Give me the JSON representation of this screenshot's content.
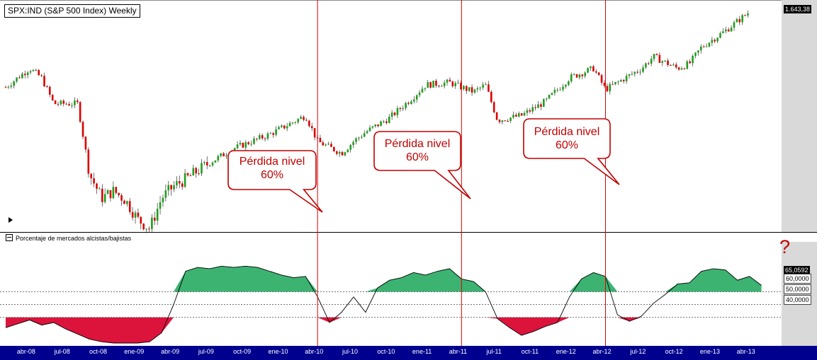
{
  "chart_title": "SPX:IND (S&P 500 Index) Weekly",
  "indicator_title": "Porcentaje de mercados alcistas/bajistas",
  "last_price_label": "1.643,38",
  "indicator_last_value_label": "65,0592",
  "question_mark": "?",
  "callouts": [
    {
      "line1": "Pérdida nivel",
      "line2": "60%"
    },
    {
      "line1": "Pérdida nivel",
      "line2": "60%"
    },
    {
      "line1": "Pérdida nivel",
      "line2": "60%"
    }
  ],
  "colors": {
    "up_candle": "#1e9e1e",
    "down_candle": "#dd0000",
    "bull_fill": "#3cb371",
    "bear_fill": "#dc143c",
    "marker_line": "#dd0000",
    "axis_bar": "#00008f",
    "right_margin": "#d9d9d9"
  },
  "chart_data": [
    {
      "type": "candlestick",
      "title": "SPX:IND (S&P 500 Index) Weekly",
      "x_ticks": [
        "abr-08",
        "jul-08",
        "oct-08",
        "ene-09",
        "abr-09",
        "jul-09",
        "oct-09",
        "ene-10",
        "abr-10",
        "jul-10",
        "oct-10",
        "ene-11",
        "abr-11",
        "jul-11",
        "oct-11",
        "ene-12",
        "abr-12",
        "jul-12",
        "oct-12",
        "ene-13",
        "abr-13"
      ],
      "x_range": [
        "2008-03",
        "2013-06"
      ],
      "series": [
        {
          "name": "SPX:IND",
          "points": [
            [
              "2008-03",
              1320
            ],
            [
              "2008-05",
              1400
            ],
            [
              "2008-06",
              1360
            ],
            [
              "2008-07",
              1250
            ],
            [
              "2008-09",
              1250
            ],
            [
              "2008-10",
              950
            ],
            [
              "2008-11",
              850
            ],
            [
              "2008-12",
              880
            ],
            [
              "2009-01",
              840
            ],
            [
              "2009-02",
              760
            ],
            [
              "2009-03",
              720
            ],
            [
              "2009-04",
              850
            ],
            [
              "2009-05",
              900
            ],
            [
              "2009-06",
              930
            ],
            [
              "2009-08",
              1000
            ],
            [
              "2009-10",
              1060
            ],
            [
              "2010-01",
              1120
            ],
            [
              "2010-04",
              1200
            ],
            [
              "2010-05",
              1090
            ],
            [
              "2010-07",
              1040
            ],
            [
              "2010-08",
              1090
            ],
            [
              "2010-09",
              1130
            ],
            [
              "2010-11",
              1190
            ],
            [
              "2011-01",
              1280
            ],
            [
              "2011-02",
              1330
            ],
            [
              "2011-04",
              1340
            ],
            [
              "2011-06",
              1300
            ],
            [
              "2011-07",
              1330
            ],
            [
              "2011-08",
              1180
            ],
            [
              "2011-10",
              1200
            ],
            [
              "2011-11",
              1230
            ],
            [
              "2011-12",
              1260
            ],
            [
              "2012-02",
              1360
            ],
            [
              "2012-04",
              1400
            ],
            [
              "2012-05",
              1310
            ],
            [
              "2012-06",
              1340
            ],
            [
              "2012-08",
              1400
            ],
            [
              "2012-09",
              1450
            ],
            [
              "2012-11",
              1400
            ],
            [
              "2012-12",
              1420
            ],
            [
              "2013-01",
              1490
            ],
            [
              "2013-03",
              1560
            ],
            [
              "2013-05",
              1640
            ]
          ]
        }
      ],
      "last_value": 1643.38,
      "vertical_markers": [
        "2010-05",
        "2011-05",
        "2012-05"
      ]
    },
    {
      "type": "area",
      "title": "Porcentaje de mercados alcistas/bajistas",
      "ylim": [
        20,
        100
      ],
      "reference_lines": [
        60,
        50,
        40
      ],
      "reference_labels": [
        "60,0000",
        "50,0000",
        "40,0000"
      ],
      "fill_above": 60,
      "fill_below": 40,
      "series": [
        {
          "name": "Porcentaje de mercados alcistas/bajistas",
          "points": [
            [
              "2008-03",
              32
            ],
            [
              "2008-04",
              35
            ],
            [
              "2008-05",
              38
            ],
            [
              "2008-06",
              34
            ],
            [
              "2008-07",
              36
            ],
            [
              "2008-08",
              31
            ],
            [
              "2008-09",
              27
            ],
            [
              "2008-10",
              23
            ],
            [
              "2008-11",
              21
            ],
            [
              "2008-12",
              20
            ],
            [
              "2009-01",
              20
            ],
            [
              "2009-02",
              20
            ],
            [
              "2009-03",
              21
            ],
            [
              "2009-04",
              28
            ],
            [
              "2009-05",
              50
            ],
            [
              "2009-06",
              76
            ],
            [
              "2009-07",
              79
            ],
            [
              "2009-08",
              78
            ],
            [
              "2009-09",
              80
            ],
            [
              "2009-10",
              79
            ],
            [
              "2009-11",
              80
            ],
            [
              "2009-12",
              79
            ],
            [
              "2010-01",
              76
            ],
            [
              "2010-02",
              73
            ],
            [
              "2010-03",
              71
            ],
            [
              "2010-04",
              72
            ],
            [
              "2010-05",
              56
            ],
            [
              "2010-06",
              36
            ],
            [
              "2010-07",
              44
            ],
            [
              "2010-08",
              56
            ],
            [
              "2010-09",
              44
            ],
            [
              "2010-10",
              63
            ],
            [
              "2010-11",
              69
            ],
            [
              "2010-12",
              71
            ],
            [
              "2011-01",
              75
            ],
            [
              "2011-02",
              73
            ],
            [
              "2011-03",
              76
            ],
            [
              "2011-04",
              78
            ],
            [
              "2011-05",
              70
            ],
            [
              "2011-06",
              68
            ],
            [
              "2011-07",
              60
            ],
            [
              "2011-08",
              39
            ],
            [
              "2011-09",
              32
            ],
            [
              "2011-10",
              26
            ],
            [
              "2011-11",
              29
            ],
            [
              "2011-12",
              33
            ],
            [
              "2012-01",
              36
            ],
            [
              "2012-02",
              56
            ],
            [
              "2012-03",
              70
            ],
            [
              "2012-04",
              75
            ],
            [
              "2012-05",
              72
            ],
            [
              "2012-06",
              42
            ],
            [
              "2012-07",
              37
            ],
            [
              "2012-08",
              41
            ],
            [
              "2012-09",
              51
            ],
            [
              "2012-10",
              58
            ],
            [
              "2012-11",
              66
            ],
            [
              "2012-12",
              67
            ],
            [
              "2013-01",
              76
            ],
            [
              "2013-02",
              78
            ],
            [
              "2013-03",
              77
            ],
            [
              "2013-04",
              69
            ],
            [
              "2013-05",
              72
            ],
            [
              "2013-06",
              65
            ]
          ]
        }
      ],
      "last_value": 65.0592
    }
  ]
}
